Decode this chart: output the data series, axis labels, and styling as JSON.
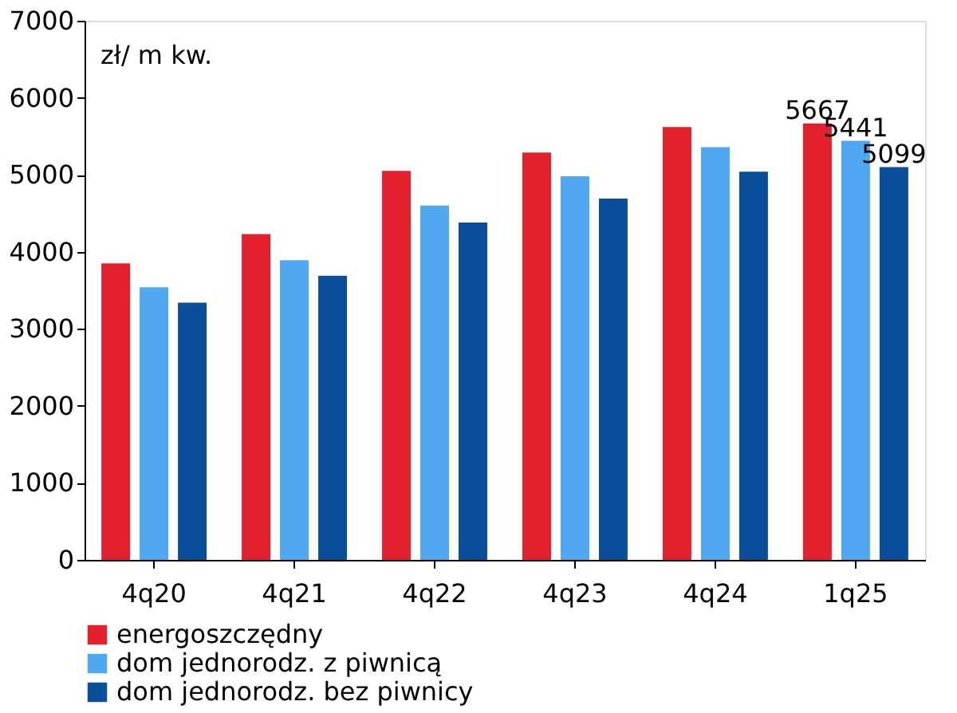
{
  "chart_data": {
    "type": "bar",
    "categories": [
      "4q20",
      "4q21",
      "4q22",
      "4q23",
      "4q24",
      "1q25"
    ],
    "series": [
      {
        "name": "energoszczędny",
        "color": "#e3202e",
        "values": [
          3850,
          4230,
          5050,
          5290,
          5620,
          5667
        ],
        "value_labels": [
          null,
          null,
          null,
          null,
          null,
          "5667"
        ]
      },
      {
        "name": "dom jednorodz. z piwnicą",
        "color": "#4fa8f0",
        "values": [
          3540,
          3890,
          4600,
          4980,
          5360,
          5441
        ],
        "value_labels": [
          null,
          null,
          null,
          null,
          null,
          "5441"
        ]
      },
      {
        "name": "dom jednorodz. bez piwnicy",
        "color": "#0b4f9c",
        "values": [
          3340,
          3690,
          4380,
          4690,
          5040,
          5099
        ],
        "value_labels": [
          null,
          null,
          null,
          null,
          null,
          "5099"
        ]
      }
    ],
    "ylim": [
      0,
      7000
    ],
    "yticks": [
      0,
      1000,
      2000,
      3000,
      4000,
      5000,
      6000,
      7000
    ],
    "annotations": [
      "zł/ m kw."
    ],
    "grid": false,
    "legend": "bottom"
  }
}
